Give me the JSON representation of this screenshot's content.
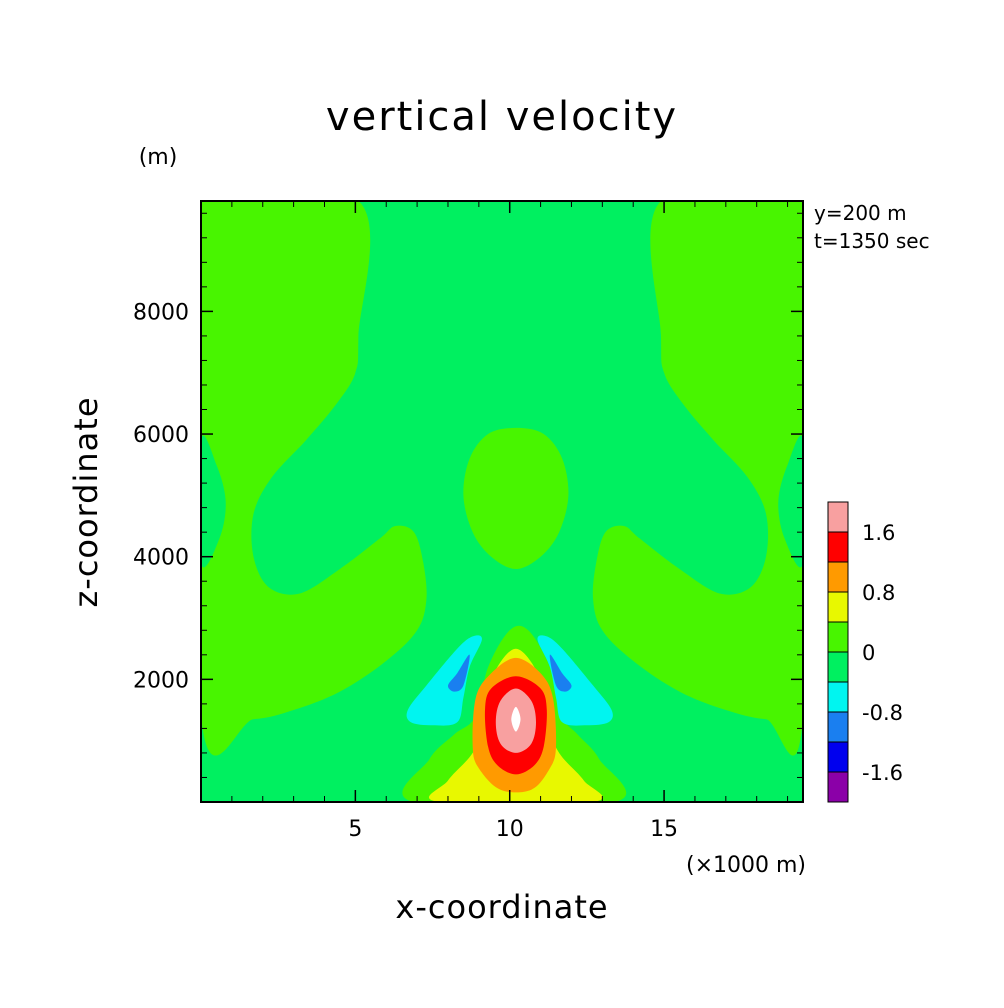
{
  "chart_data": {
    "type": "contour",
    "title": "vertical velocity",
    "xlabel": "x-coordinate",
    "ylabel": "z-coordinate",
    "x_unit": "(×1000 m)",
    "y_unit": "(m)",
    "info": [
      "y=200 m",
      "t=1350 sec"
    ],
    "xlim": [
      0,
      19.5
    ],
    "ylim": [
      0,
      9800
    ],
    "x_ticks": [
      5,
      10,
      15
    ],
    "y_ticks": [
      2000,
      4000,
      6000,
      8000
    ],
    "x_minor_step": 1,
    "y_minor_step": 400,
    "colorbar": {
      "levels": [
        "<-1.6",
        "-1.6 to -1.2",
        "-1.2 to -0.8",
        "-0.8 to -0.4",
        "-0.4 to 0",
        "0 to 0.4",
        "0.4 to 0.8",
        "0.8 to 1.2",
        "1.2 to 1.6",
        ">1.6"
      ],
      "colors": [
        "#8b00a8",
        "#0000ee",
        "#1a7ff0",
        "#00f5f0",
        "#00f060",
        "#48f500",
        "#e8f800",
        "#ff9a00",
        "#ff0000",
        "#f8a0a0"
      ],
      "tick_labels": [
        "1.6",
        "0.8",
        "0",
        "-0.8",
        "-1.6"
      ],
      "tick_values": [
        1.6,
        0.8,
        0,
        -0.8,
        -1.6
      ]
    },
    "background_level_color": "#00f060",
    "regions": [
      {
        "name": "left-upper-positive",
        "color": "#48f500",
        "points": [
          [
            0,
            9800
          ],
          [
            5.1,
            9800
          ],
          [
            5.1,
            7600
          ],
          [
            5.0,
            7000
          ],
          [
            4.4,
            6500
          ],
          [
            3.4,
            5900
          ],
          [
            2.3,
            5300
          ],
          [
            1.7,
            4700
          ],
          [
            1.7,
            4000
          ],
          [
            2.2,
            3500
          ],
          [
            3.2,
            3400
          ],
          [
            4.5,
            3800
          ],
          [
            5.8,
            4300
          ],
          [
            6.3,
            4500
          ],
          [
            6.9,
            4400
          ],
          [
            7.2,
            3900
          ],
          [
            7.3,
            3300
          ],
          [
            7.0,
            2800
          ],
          [
            6.0,
            2300
          ],
          [
            4.5,
            1800
          ],
          [
            3.0,
            1500
          ],
          [
            1.7,
            1350
          ],
          [
            0,
            1400
          ]
        ]
      },
      {
        "name": "right-upper-positive",
        "color": "#48f500",
        "points": [
          [
            19.5,
            9800
          ],
          [
            14.9,
            9800
          ],
          [
            14.9,
            7600
          ],
          [
            15.0,
            7000
          ],
          [
            15.6,
            6500
          ],
          [
            16.6,
            5900
          ],
          [
            17.7,
            5300
          ],
          [
            18.3,
            4700
          ],
          [
            18.3,
            4000
          ],
          [
            17.8,
            3500
          ],
          [
            16.8,
            3400
          ],
          [
            15.5,
            3800
          ],
          [
            14.2,
            4300
          ],
          [
            13.7,
            4500
          ],
          [
            13.1,
            4400
          ],
          [
            12.8,
            3900
          ],
          [
            12.7,
            3300
          ],
          [
            13.0,
            2800
          ],
          [
            14.0,
            2300
          ],
          [
            15.5,
            1800
          ],
          [
            17.0,
            1500
          ],
          [
            18.3,
            1350
          ],
          [
            19.5,
            1400
          ]
        ]
      },
      {
        "name": "left-edge-negative",
        "color": "#00f060",
        "points": [
          [
            0,
            5900
          ],
          [
            0.5,
            5500
          ],
          [
            0.8,
            4900
          ],
          [
            0.6,
            4300
          ],
          [
            0,
            3900
          ]
        ]
      },
      {
        "name": "right-edge-negative",
        "color": "#00f060",
        "points": [
          [
            19.5,
            5900
          ],
          [
            19.0,
            5500
          ],
          [
            18.7,
            4900
          ],
          [
            18.9,
            4300
          ],
          [
            19.5,
            3900
          ]
        ]
      },
      {
        "name": "center-upper-positive",
        "color": "#48f500",
        "points": [
          [
            10.2,
            6100
          ],
          [
            11.1,
            6000
          ],
          [
            11.7,
            5600
          ],
          [
            11.9,
            5000
          ],
          [
            11.6,
            4400
          ],
          [
            11.0,
            4000
          ],
          [
            10.2,
            3800
          ],
          [
            9.4,
            4000
          ],
          [
            8.8,
            4400
          ],
          [
            8.5,
            5000
          ],
          [
            8.7,
            5600
          ],
          [
            9.3,
            6000
          ]
        ]
      },
      {
        "name": "bottom-positive",
        "color": "#48f500",
        "points": [
          [
            6.9,
            0
          ],
          [
            7.4,
            700
          ],
          [
            8.2,
            1100
          ],
          [
            8.9,
            1400
          ],
          [
            9.3,
            2200
          ],
          [
            10.0,
            2800
          ],
          [
            10.6,
            2800
          ],
          [
            11.3,
            2200
          ],
          [
            11.7,
            1400
          ],
          [
            12.2,
            1100
          ],
          [
            12.9,
            700
          ],
          [
            13.4,
            0
          ]
        ]
      },
      {
        "name": "yellow-core",
        "color": "#e8f800",
        "points": [
          [
            7.7,
            0
          ],
          [
            8.0,
            350
          ],
          [
            8.8,
            800
          ],
          [
            9.2,
            1300
          ],
          [
            9.4,
            2000
          ],
          [
            10.2,
            2500
          ],
          [
            11.0,
            2000
          ],
          [
            11.2,
            1300
          ],
          [
            11.6,
            800
          ],
          [
            12.4,
            350
          ],
          [
            12.7,
            0
          ]
        ]
      },
      {
        "name": "orange-core",
        "color": "#ff9a00",
        "points": [
          [
            9.7,
            200
          ],
          [
            9.0,
            550
          ],
          [
            8.8,
            900
          ],
          [
            8.9,
            1700
          ],
          [
            9.4,
            2100
          ],
          [
            10.2,
            2350
          ],
          [
            11.0,
            2100
          ],
          [
            11.4,
            1700
          ],
          [
            11.5,
            900
          ],
          [
            11.3,
            550
          ],
          [
            10.7,
            200
          ]
        ]
      },
      {
        "name": "red-core",
        "color": "#ff0000",
        "points": [
          [
            10.2,
            450
          ],
          [
            9.6,
            600
          ],
          [
            9.3,
            900
          ],
          [
            9.2,
            1500
          ],
          [
            9.4,
            1850
          ],
          [
            10.2,
            2050
          ],
          [
            11.0,
            1850
          ],
          [
            11.2,
            1500
          ],
          [
            11.1,
            900
          ],
          [
            10.8,
            600
          ]
        ]
      },
      {
        "name": "pink-core",
        "color": "#f8a0a0",
        "points": [
          [
            10.2,
            800
          ],
          [
            9.7,
            950
          ],
          [
            9.55,
            1300
          ],
          [
            9.7,
            1650
          ],
          [
            10.2,
            1850
          ],
          [
            10.7,
            1650
          ],
          [
            10.85,
            1300
          ],
          [
            10.7,
            950
          ]
        ]
      },
      {
        "name": "white-peak",
        "color": "#ffffff",
        "points": [
          [
            10.2,
            1150
          ],
          [
            10.05,
            1350
          ],
          [
            10.2,
            1550
          ],
          [
            10.35,
            1350
          ]
        ]
      },
      {
        "name": "left-cyan-lobe",
        "color": "#00f5f0",
        "points": [
          [
            6.7,
            1500
          ],
          [
            7.3,
            1900
          ],
          [
            8.3,
            2500
          ],
          [
            8.8,
            2700
          ],
          [
            9.1,
            2650
          ],
          [
            8.7,
            2200
          ],
          [
            8.5,
            1700
          ],
          [
            8.3,
            1300
          ],
          [
            7.5,
            1250
          ],
          [
            6.8,
            1300
          ]
        ]
      },
      {
        "name": "right-cyan-lobe",
        "color": "#00f5f0",
        "points": [
          [
            13.3,
            1500
          ],
          [
            12.7,
            1900
          ],
          [
            11.7,
            2500
          ],
          [
            11.2,
            2700
          ],
          [
            10.9,
            2650
          ],
          [
            11.3,
            2200
          ],
          [
            11.5,
            1700
          ],
          [
            11.7,
            1300
          ],
          [
            12.5,
            1250
          ],
          [
            13.2,
            1300
          ]
        ]
      },
      {
        "name": "left-blue-lobe",
        "color": "#1a7ff0",
        "points": [
          [
            8.0,
            1900
          ],
          [
            8.3,
            2100
          ],
          [
            8.7,
            2400
          ],
          [
            8.5,
            1900
          ],
          [
            8.2,
            1800
          ]
        ]
      },
      {
        "name": "right-blue-lobe",
        "color": "#1a7ff0",
        "points": [
          [
            12.0,
            1900
          ],
          [
            11.7,
            2100
          ],
          [
            11.3,
            2400
          ],
          [
            11.5,
            1900
          ],
          [
            11.8,
            1800
          ]
        ]
      }
    ]
  }
}
